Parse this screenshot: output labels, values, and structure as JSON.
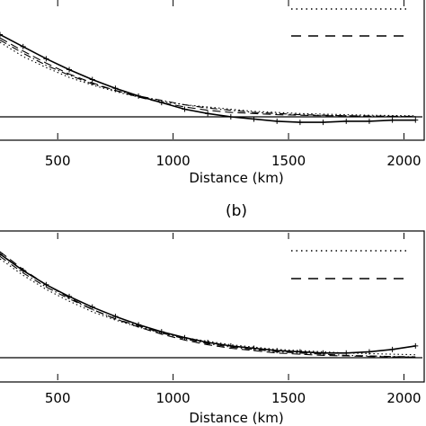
{
  "chart_data": [
    {
      "type": "line",
      "panel": "",
      "xlabel": "Distance (km)",
      "ylabel": "",
      "xlim": [
        250,
        2080
      ],
      "ylim": [
        -0.22,
        1.0
      ],
      "x_ticks": [
        500,
        1000,
        1500,
        2000
      ],
      "x_tick_labels": [
        "500",
        "1000",
        "1500",
        "2000"
      ],
      "grid": false,
      "legend": "top-right",
      "series": [
        {
          "style": "crosses",
          "x": [
            250,
            350,
            450,
            550,
            650,
            750,
            850,
            950,
            1050,
            1150,
            1250,
            1350,
            1450,
            1550,
            1650,
            1750,
            1850,
            1950,
            2050
          ],
          "values": [
            0.75,
            0.64,
            0.53,
            0.43,
            0.34,
            0.26,
            0.19,
            0.13,
            0.07,
            0.03,
            0.0,
            -0.02,
            -0.04,
            -0.05,
            -0.05,
            -0.04,
            -0.04,
            -0.03,
            -0.03
          ]
        },
        {
          "style": "dotted",
          "x": [
            250,
            350,
            450,
            550,
            650,
            750,
            850,
            950,
            1050,
            1150,
            1250,
            1350,
            1450,
            1550,
            1650,
            1750,
            1850,
            1950,
            2050
          ],
          "values": [
            0.68,
            0.55,
            0.45,
            0.36,
            0.29,
            0.23,
            0.18,
            0.14,
            0.11,
            0.09,
            0.07,
            0.05,
            0.04,
            0.03,
            0.025,
            0.02,
            0.015,
            0.012,
            0.01
          ]
        },
        {
          "style": "dashed",
          "x": [
            250,
            350,
            450,
            550,
            650,
            750,
            850,
            950,
            1050,
            1150,
            1250,
            1350,
            1450,
            1550,
            1650,
            1750,
            1850,
            1950,
            2050
          ],
          "values": [
            0.72,
            0.6,
            0.49,
            0.39,
            0.31,
            0.24,
            0.18,
            0.13,
            0.09,
            0.06,
            0.04,
            0.03,
            0.02,
            0.015,
            0.01,
            0.01,
            0.005,
            0.005,
            0.0
          ]
        },
        {
          "style": "dash-dot",
          "x": [
            250,
            350,
            450,
            550,
            650,
            750,
            850,
            950,
            1050,
            1150,
            1250,
            1350,
            1450,
            1550,
            1650,
            1750,
            1850,
            1950,
            2050
          ],
          "values": [
            0.7,
            0.58,
            0.47,
            0.38,
            0.3,
            0.24,
            0.19,
            0.15,
            0.11,
            0.08,
            0.06,
            0.04,
            0.03,
            0.02,
            0.015,
            0.01,
            0.008,
            0.005,
            0.004
          ]
        }
      ]
    },
    {
      "type": "line",
      "panel": "(b)",
      "xlabel": "Distance (km)",
      "ylabel": "",
      "xlim": [
        250,
        2080
      ],
      "ylim": [
        -0.22,
        1.0
      ],
      "x_ticks": [
        500,
        1000,
        1500,
        2000
      ],
      "x_tick_labels": [
        "500",
        "1000",
        "1500",
        "2000"
      ],
      "grid": false,
      "legend": "top-right",
      "series": [
        {
          "style": "crosses",
          "x": [
            250,
            350,
            450,
            550,
            650,
            750,
            850,
            950,
            1050,
            1150,
            1250,
            1350,
            1450,
            1550,
            1650,
            1750,
            1850,
            1950,
            2050
          ],
          "values": [
            0.88,
            0.74,
            0.62,
            0.52,
            0.43,
            0.35,
            0.28,
            0.22,
            0.17,
            0.13,
            0.1,
            0.08,
            0.06,
            0.05,
            0.04,
            0.04,
            0.05,
            0.07,
            0.1
          ]
        },
        {
          "style": "dotted",
          "x": [
            250,
            350,
            450,
            550,
            650,
            750,
            850,
            950,
            1050,
            1150,
            1250,
            1350,
            1450,
            1550,
            1650,
            1750,
            1850,
            1950,
            2050
          ],
          "values": [
            0.84,
            0.7,
            0.58,
            0.48,
            0.39,
            0.32,
            0.26,
            0.21,
            0.17,
            0.14,
            0.11,
            0.09,
            0.07,
            0.06,
            0.05,
            0.04,
            0.035,
            0.03,
            0.025
          ]
        },
        {
          "style": "dashed",
          "x": [
            250,
            350,
            450,
            550,
            650,
            750,
            850,
            950,
            1050,
            1150,
            1250,
            1350,
            1450,
            1550,
            1650,
            1750,
            1850,
            1950,
            2050
          ],
          "values": [
            0.9,
            0.75,
            0.62,
            0.51,
            0.41,
            0.33,
            0.26,
            0.2,
            0.15,
            0.11,
            0.08,
            0.06,
            0.04,
            0.03,
            0.02,
            0.015,
            0.01,
            0.008,
            0.005
          ]
        },
        {
          "style": "dash-dot",
          "x": [
            250,
            350,
            450,
            550,
            650,
            750,
            850,
            950,
            1050,
            1150,
            1250,
            1350,
            1450,
            1550,
            1650,
            1750,
            1850,
            1950,
            2050
          ],
          "values": [
            0.86,
            0.72,
            0.6,
            0.5,
            0.41,
            0.33,
            0.27,
            0.21,
            0.16,
            0.12,
            0.09,
            0.07,
            0.05,
            0.04,
            0.03,
            0.02,
            0.015,
            0.01,
            0.008
          ]
        }
      ]
    }
  ]
}
